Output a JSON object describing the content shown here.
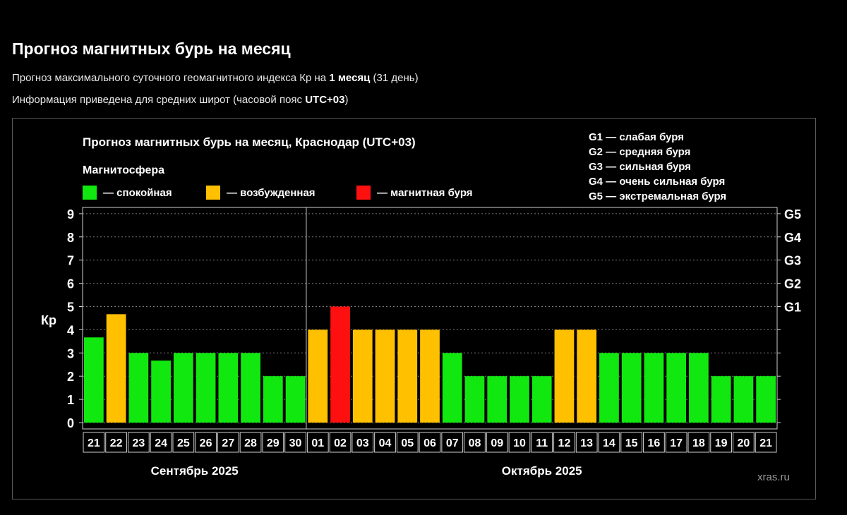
{
  "page": {
    "title": "Прогноз магнитных бурь на месяц",
    "subtitle1": {
      "prefix": "Прогноз максимального суточного геомагнитного индекса Кр на ",
      "bold": "1 месяц",
      "suffix": " (31 день)"
    },
    "subtitle2": {
      "prefix": "Информация приведена для средних широт (часовой пояс ",
      "bold": "UTC+03",
      "suffix": ")"
    }
  },
  "chart_data": {
    "type": "bar",
    "title": "Прогноз магнитных бурь на месяц, Краснодар (UTC+03)",
    "ylabel": "Кр",
    "ylim": [
      0,
      9
    ],
    "grid": true,
    "legend_title": "Магнитосфера",
    "legend": [
      {
        "label": "— спокойная",
        "color": "#11e80f"
      },
      {
        "label": "— возбужденная",
        "color": "#ffc000"
      },
      {
        "label": "— магнитная буря",
        "color": "#ff1010"
      }
    ],
    "storm_scale": [
      "G1 — слабая буря",
      "G2 — средняя буря",
      "G3 — сильная буря",
      "G4 — очень сильная буря",
      "G5 — экстремальная буря"
    ],
    "right_axis": [
      {
        "level": 5,
        "label": "G1"
      },
      {
        "level": 6,
        "label": "G2"
      },
      {
        "level": 7,
        "label": "G3"
      },
      {
        "level": 8,
        "label": "G4"
      },
      {
        "level": 9,
        "label": "G5"
      }
    ],
    "yticks": [
      0,
      1,
      2,
      3,
      4,
      5,
      6,
      7,
      8,
      9
    ],
    "categories": [
      "21",
      "22",
      "23",
      "24",
      "25",
      "26",
      "27",
      "28",
      "29",
      "30",
      "01",
      "02",
      "03",
      "04",
      "05",
      "06",
      "07",
      "08",
      "09",
      "10",
      "11",
      "12",
      "13",
      "14",
      "15",
      "16",
      "17",
      "18",
      "19",
      "20",
      "21"
    ],
    "values": [
      3.67,
      4.67,
      3,
      2.67,
      3,
      3,
      3,
      3,
      2,
      2,
      4,
      5,
      4,
      4,
      4,
      4,
      3,
      2,
      2,
      2,
      2,
      4,
      4,
      3,
      3,
      3,
      3,
      3,
      2,
      2,
      2
    ],
    "status": [
      "calm",
      "excited",
      "calm",
      "calm",
      "calm",
      "calm",
      "calm",
      "calm",
      "calm",
      "calm",
      "excited",
      "storm",
      "excited",
      "excited",
      "excited",
      "excited",
      "calm",
      "calm",
      "calm",
      "calm",
      "calm",
      "excited",
      "excited",
      "calm",
      "calm",
      "calm",
      "calm",
      "calm",
      "calm",
      "calm",
      "calm"
    ],
    "status_colors": {
      "calm": "#11e80f",
      "excited": "#ffc000",
      "storm": "#ff1010"
    },
    "months": [
      {
        "label": "Сентябрь 2025",
        "start": 0,
        "end": 9
      },
      {
        "label": "Октябрь 2025",
        "start": 10,
        "end": 30
      }
    ],
    "source": "xras.ru"
  }
}
